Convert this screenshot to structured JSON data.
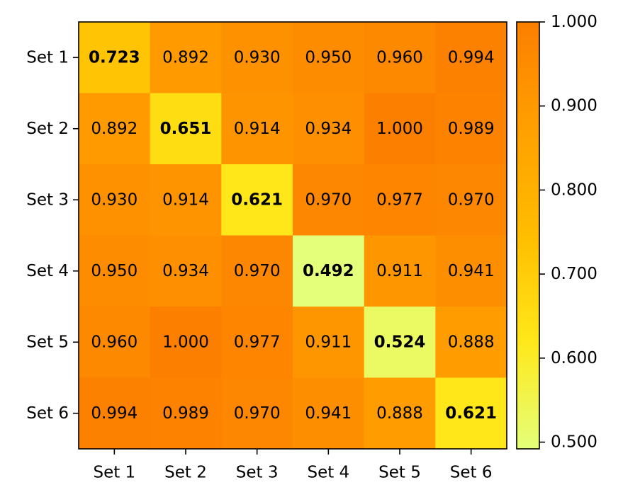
{
  "chart_data": {
    "type": "heatmap",
    "title": "",
    "xlabel": "",
    "ylabel": "",
    "x_categories": [
      "Set 1",
      "Set 2",
      "Set 3",
      "Set 4",
      "Set 5",
      "Set 6"
    ],
    "y_categories": [
      "Set 1",
      "Set 2",
      "Set 3",
      "Set 4",
      "Set 5",
      "Set 6"
    ],
    "values": [
      [
        0.723,
        0.892,
        0.93,
        0.95,
        0.96,
        0.994
      ],
      [
        0.892,
        0.651,
        0.914,
        0.934,
        1.0,
        0.989
      ],
      [
        0.93,
        0.914,
        0.621,
        0.97,
        0.977,
        0.97
      ],
      [
        0.95,
        0.934,
        0.97,
        0.492,
        0.911,
        0.941
      ],
      [
        0.96,
        1.0,
        0.977,
        0.911,
        0.524,
        0.888
      ],
      [
        0.994,
        0.989,
        0.97,
        0.941,
        0.888,
        0.621
      ]
    ],
    "diagonal_bold": true,
    "value_format_decimals": 3,
    "colorbar": {
      "range": [
        0.492,
        1.0
      ],
      "ticks": [
        0.5,
        0.6,
        0.7,
        0.8,
        0.9,
        1.0
      ],
      "tick_labels": [
        "0.500",
        "0.600",
        "0.700",
        "0.800",
        "0.900",
        "1.000"
      ],
      "colormap": "Wistia",
      "color_stops": [
        "#e4ff7a",
        "#ffe81a",
        "#ffbd00",
        "#ffa000",
        "#fc7f00"
      ]
    }
  }
}
